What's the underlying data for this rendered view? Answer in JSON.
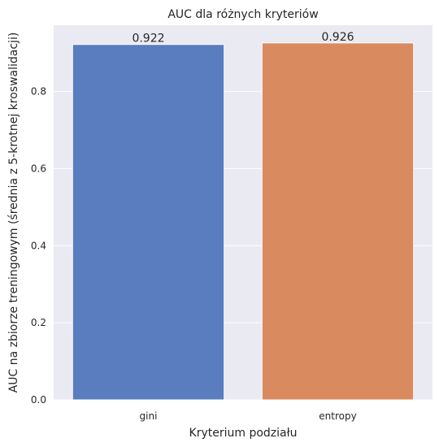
{
  "chart_data": {
    "type": "bar",
    "title": "AUC  dla różnych kryteriów",
    "xlabel": "Kryterium podziału",
    "ylabel": "AUC na zbiorze treningowym (średnia z 5-krotnej kroswalidacji)",
    "categories": [
      "gini",
      "entropy"
    ],
    "values": [
      0.922,
      0.926
    ],
    "value_labels": [
      "0.922",
      "0.926"
    ],
    "colors": [
      "#5a7dbf",
      "#d98b5f"
    ],
    "ylim": [
      0,
      0.972
    ],
    "yticks": [
      0.0,
      0.2,
      0.4,
      0.6,
      0.8
    ],
    "ytick_labels": [
      "0.0",
      "0.2",
      "0.4",
      "0.6",
      "0.8"
    ],
    "grid": true,
    "background": "#eaeaf2",
    "grid_color": "#ffffff"
  }
}
